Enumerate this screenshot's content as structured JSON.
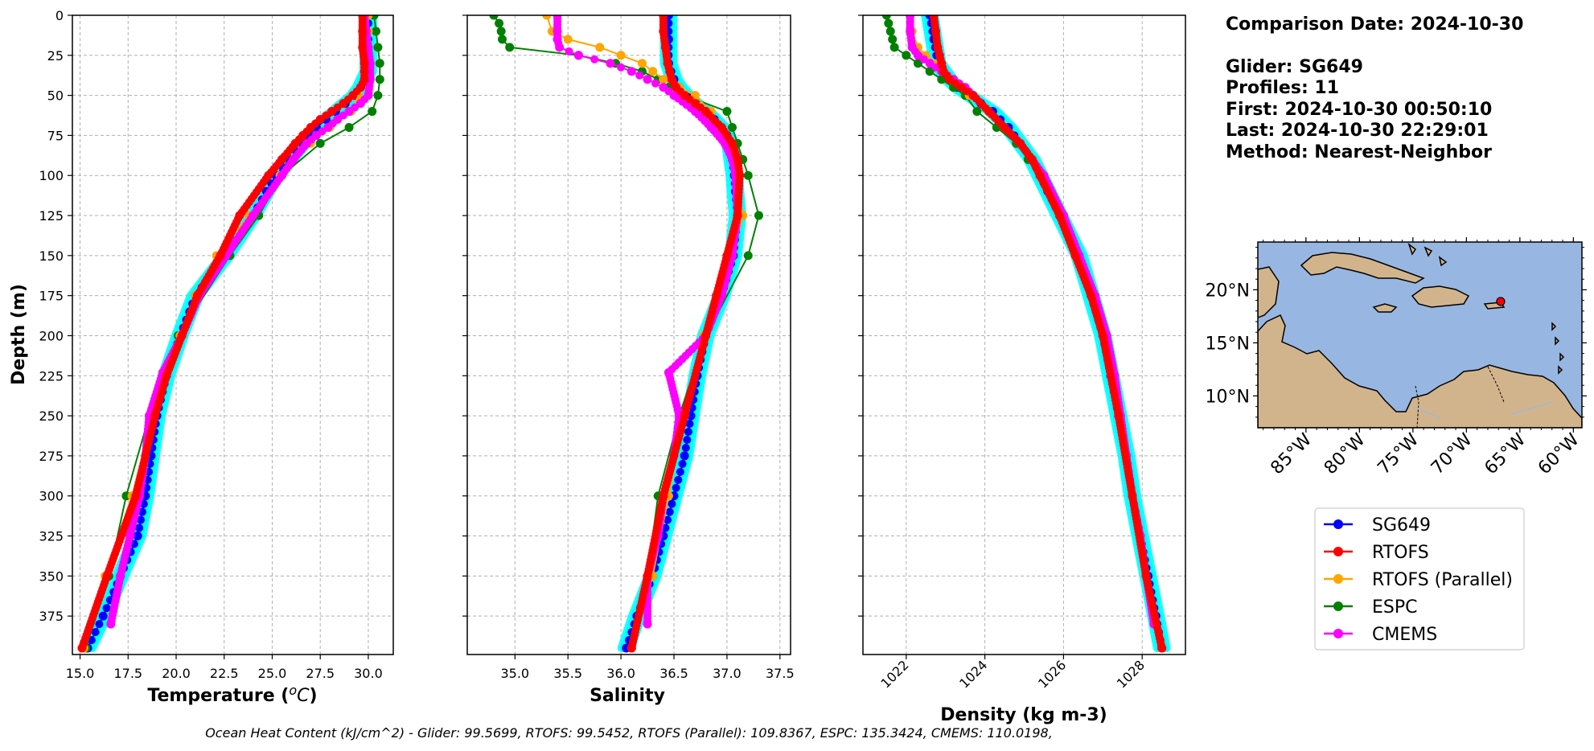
{
  "info": {
    "comparison": "Comparison Date: 2024-10-30",
    "glider": "Glider: SG649",
    "profiles": "Profiles: 11",
    "first": "First: 2024-10-30 00:50:10",
    "last": "Last: 2024-10-30 22:29:01",
    "method": "Method: Nearest-Neighbor"
  },
  "footer": "Ocean Heat Content (kJ/cm^2) - Glider: 99.5699,  RTOFS: 99.5452,  RTOFS (Parallel): 109.8367,  ESPC: 135.3424,  CMEMS: 110.0198,",
  "colors": {
    "SG649": "#0000ff",
    "RTOFS": "#ff0000",
    "RTOFS (Parallel)": "#ffa500",
    "ESPC": "#008000",
    "CMEMS": "#ff00ff",
    "glider_cloud": "#00ffff",
    "ocean": "#97b6e1",
    "land": "#d2b48c"
  },
  "legend": [
    "SG649",
    "RTOFS",
    "RTOFS (Parallel)",
    "ESPC",
    "CMEMS"
  ],
  "chart_data": [
    {
      "type": "line",
      "xlabel": "Temperature (°C)",
      "ylabel": "Depth (m)",
      "xlim": [
        14.6,
        31.3
      ],
      "ylim": [
        399,
        0
      ],
      "xticks": [
        15.0,
        17.5,
        20.0,
        22.5,
        25.0,
        27.5,
        30.0
      ],
      "xtick_labels": [
        "15.0",
        "17.5",
        "20.0",
        "22.5",
        "25.0",
        "27.5",
        "30.0"
      ],
      "yticks": [
        0,
        25,
        50,
        75,
        100,
        125,
        150,
        175,
        200,
        225,
        250,
        275,
        300,
        325,
        350,
        375
      ],
      "grid": true,
      "series": [
        {
          "name": "SG649",
          "marker_every": 5,
          "depth": [
            0,
            20,
            35,
            40,
            45,
            50,
            55,
            60,
            65,
            70,
            75,
            80,
            90,
            100,
            110,
            125,
            150,
            175,
            200,
            225,
            250,
            275,
            300,
            325,
            350,
            375,
            395
          ],
          "values": [
            30.0,
            30.0,
            30.0,
            29.8,
            29.6,
            29.3,
            28.8,
            28.3,
            27.8,
            27.3,
            26.9,
            26.6,
            25.9,
            25.2,
            24.7,
            24.0,
            22.6,
            21.0,
            20.2,
            19.5,
            19.0,
            18.7,
            18.4,
            18.0,
            17.1,
            16.2,
            15.4
          ]
        },
        {
          "name": "RTOFS",
          "marker_every": 2,
          "depth": [
            0,
            10,
            20,
            30,
            35,
            40,
            45,
            50,
            55,
            60,
            65,
            70,
            75,
            80,
            90,
            100,
            125,
            150,
            175,
            200,
            225,
            250,
            300,
            350,
            395
          ],
          "values": [
            29.7,
            29.7,
            29.7,
            29.8,
            29.8,
            29.8,
            29.6,
            29.2,
            28.7,
            28.1,
            27.5,
            27.0,
            26.6,
            26.2,
            25.5,
            24.8,
            23.3,
            22.3,
            21.1,
            20.3,
            19.5,
            18.9,
            17.9,
            16.4,
            15.1
          ]
        },
        {
          "name": "RTOFS (Parallel)",
          "depth": [
            0,
            10,
            20,
            30,
            40,
            50,
            60,
            70,
            80,
            90,
            100,
            125,
            150,
            175,
            200,
            225,
            250,
            300,
            350,
            395
          ],
          "values": [
            30.0,
            30.0,
            30.0,
            30.0,
            29.8,
            29.5,
            29.1,
            28.0,
            27.0,
            26.1,
            25.4,
            23.8,
            22.1,
            21.0,
            20.2,
            19.3,
            18.8,
            17.7,
            16.3,
            15.2
          ]
        },
        {
          "name": "ESPC",
          "depth": [
            0,
            10,
            20,
            30,
            40,
            50,
            60,
            70,
            80,
            100,
            125,
            150,
            200,
            250,
            300,
            350,
            395
          ],
          "values": [
            30.3,
            30.4,
            30.5,
            30.6,
            30.6,
            30.5,
            30.2,
            29.0,
            27.5,
            25.5,
            24.3,
            22.8,
            20.1,
            18.6,
            17.4,
            16.5,
            15.3
          ]
        },
        {
          "name": "CMEMS",
          "marker_every": 2,
          "depth": [
            0,
            10,
            20,
            30,
            40,
            50,
            55,
            60,
            65,
            70,
            75,
            80,
            90,
            100,
            125,
            150,
            175,
            200,
            223,
            250,
            275,
            300,
            325,
            350,
            380
          ],
          "values": [
            29.8,
            29.9,
            30.0,
            30.1,
            30.1,
            30.0,
            29.6,
            29.0,
            28.4,
            27.9,
            27.3,
            26.8,
            26.1,
            25.5,
            24.0,
            22.6,
            21.2,
            20.3,
            19.3,
            18.6,
            18.4,
            18.1,
            17.6,
            17.1,
            16.6
          ]
        }
      ]
    },
    {
      "type": "line",
      "xlabel": "Salinity",
      "xlim": [
        34.55,
        37.6
      ],
      "ylim": [
        399,
        0
      ],
      "xticks": [
        35.0,
        35.5,
        36.0,
        36.5,
        37.0,
        37.5
      ],
      "xtick_labels": [
        "35.0",
        "35.5",
        "36.0",
        "36.5",
        "37.0",
        "37.5"
      ],
      "grid": true,
      "series": [
        {
          "name": "SG649",
          "marker_every": 5,
          "depth": [
            0,
            15,
            30,
            40,
            45,
            50,
            55,
            60,
            65,
            70,
            75,
            80,
            90,
            100,
            110,
            125,
            150,
            175,
            200,
            225,
            250,
            275,
            300,
            325,
            350,
            375,
            395
          ],
          "values": [
            36.45,
            36.45,
            36.45,
            36.5,
            36.55,
            36.62,
            36.7,
            36.8,
            36.88,
            36.95,
            37.0,
            37.03,
            37.05,
            37.07,
            37.08,
            37.1,
            37.06,
            36.95,
            36.8,
            36.72,
            36.66,
            36.6,
            36.5,
            36.4,
            36.3,
            36.15,
            36.05
          ]
        },
        {
          "name": "RTOFS",
          "marker_every": 2,
          "depth": [
            0,
            10,
            20,
            30,
            35,
            40,
            45,
            50,
            55,
            60,
            70,
            80,
            90,
            100,
            125,
            150,
            175,
            200,
            250,
            300,
            350,
            395
          ],
          "values": [
            36.4,
            36.4,
            36.42,
            36.44,
            36.46,
            36.48,
            36.52,
            36.6,
            36.7,
            36.8,
            36.95,
            37.05,
            37.1,
            37.12,
            37.1,
            37.0,
            36.9,
            36.8,
            36.6,
            36.4,
            36.25,
            36.1
          ]
        },
        {
          "name": "RTOFS (Parallel)",
          "depth": [
            0,
            10,
            15,
            20,
            25,
            30,
            35,
            40,
            45,
            50,
            60,
            70,
            80,
            90,
            100,
            125,
            150,
            175,
            200,
            250,
            300,
            350,
            395
          ],
          "values": [
            35.3,
            35.35,
            35.5,
            35.8,
            36.0,
            36.2,
            36.3,
            36.4,
            36.55,
            36.7,
            36.85,
            36.95,
            37.05,
            37.08,
            37.1,
            37.15,
            37.05,
            36.9,
            36.78,
            36.6,
            36.45,
            36.3,
            36.1
          ]
        },
        {
          "name": "ESPC",
          "depth": [
            0,
            5,
            10,
            15,
            20,
            25,
            30,
            35,
            40,
            45,
            50,
            60,
            70,
            80,
            90,
            100,
            125,
            150,
            200,
            250,
            300,
            350,
            395
          ],
          "values": [
            34.8,
            34.85,
            34.87,
            34.88,
            34.95,
            35.6,
            35.95,
            36.2,
            36.35,
            36.45,
            36.6,
            37.0,
            37.05,
            37.1,
            37.15,
            37.2,
            37.3,
            37.2,
            36.8,
            36.55,
            36.35,
            36.25,
            36.1
          ]
        },
        {
          "name": "CMEMS",
          "marker_every": 2,
          "depth": [
            0,
            10,
            15,
            20,
            25,
            30,
            35,
            40,
            45,
            50,
            60,
            70,
            80,
            90,
            100,
            125,
            150,
            175,
            200,
            223,
            250,
            275,
            300,
            325,
            350,
            380
          ],
          "values": [
            35.4,
            35.4,
            35.4,
            35.42,
            35.6,
            35.9,
            36.1,
            36.25,
            36.4,
            36.5,
            36.7,
            36.85,
            36.98,
            37.05,
            37.08,
            37.1,
            37.05,
            36.95,
            36.8,
            36.45,
            36.55,
            36.5,
            36.4,
            36.35,
            36.25,
            36.25
          ]
        }
      ]
    },
    {
      "type": "line",
      "xlabel": "Density (kg m-3)",
      "xlim": [
        1020.9,
        1029.1
      ],
      "ylim": [
        399,
        0
      ],
      "xticks": [
        1022,
        1024,
        1026,
        1028
      ],
      "xtick_labels": [
        "1022",
        "1024",
        "1026",
        "1028"
      ],
      "grid": true,
      "series": [
        {
          "name": "SG649",
          "marker_every": 5,
          "depth": [
            0,
            15,
            30,
            40,
            45,
            50,
            55,
            60,
            70,
            80,
            90,
            100,
            110,
            125,
            150,
            175,
            200,
            225,
            250,
            275,
            300,
            325,
            350,
            375,
            395
          ],
          "values": [
            1022.6,
            1022.7,
            1022.8,
            1023.1,
            1023.3,
            1023.6,
            1023.9,
            1024.2,
            1024.6,
            1024.9,
            1025.2,
            1025.4,
            1025.6,
            1025.9,
            1026.4,
            1026.7,
            1027.0,
            1027.2,
            1027.4,
            1027.6,
            1027.75,
            1027.95,
            1028.15,
            1028.35,
            1028.5
          ]
        },
        {
          "name": "RTOFS",
          "marker_every": 2,
          "depth": [
            0,
            10,
            20,
            25,
            30,
            35,
            40,
            45,
            50,
            60,
            70,
            80,
            90,
            100,
            125,
            150,
            175,
            200,
            250,
            300,
            350,
            395
          ],
          "values": [
            1022.7,
            1022.75,
            1022.8,
            1022.85,
            1022.9,
            1022.95,
            1023.1,
            1023.4,
            1023.7,
            1024.1,
            1024.5,
            1024.9,
            1025.2,
            1025.4,
            1025.9,
            1026.3,
            1026.7,
            1027.0,
            1027.4,
            1027.75,
            1028.1,
            1028.5
          ]
        },
        {
          "name": "RTOFS (Parallel)",
          "depth": [
            0,
            10,
            20,
            25,
            30,
            40,
            50,
            60,
            70,
            80,
            90,
            100,
            125,
            150,
            200,
            250,
            300,
            350,
            395
          ],
          "values": [
            1022.1,
            1022.15,
            1022.3,
            1022.5,
            1022.8,
            1023.2,
            1023.6,
            1024.1,
            1024.5,
            1024.9,
            1025.2,
            1025.4,
            1025.9,
            1026.4,
            1027.0,
            1027.4,
            1027.75,
            1028.1,
            1028.5
          ]
        },
        {
          "name": "ESPC",
          "depth": [
            0,
            5,
            10,
            15,
            20,
            25,
            30,
            35,
            40,
            45,
            50,
            60,
            70,
            80,
            90,
            100,
            125,
            150,
            200,
            250,
            300,
            350,
            395
          ],
          "values": [
            1021.5,
            1021.55,
            1021.6,
            1021.65,
            1021.7,
            1022.0,
            1022.3,
            1022.6,
            1022.9,
            1023.2,
            1023.5,
            1023.8,
            1024.3,
            1024.8,
            1025.1,
            1025.4,
            1025.9,
            1026.4,
            1027.0,
            1027.4,
            1027.75,
            1028.1,
            1028.5
          ]
        },
        {
          "name": "CMEMS",
          "marker_every": 2,
          "depth": [
            0,
            10,
            20,
            25,
            30,
            35,
            40,
            45,
            50,
            60,
            70,
            80,
            90,
            100,
            125,
            150,
            175,
            200,
            225,
            250,
            275,
            300,
            325,
            350,
            380
          ],
          "values": [
            1022.1,
            1022.1,
            1022.15,
            1022.3,
            1022.6,
            1022.9,
            1023.2,
            1023.5,
            1023.7,
            1024.1,
            1024.5,
            1024.9,
            1025.2,
            1025.5,
            1026.0,
            1026.4,
            1026.8,
            1027.1,
            1027.3,
            1027.45,
            1027.6,
            1027.75,
            1027.95,
            1028.1,
            1028.3
          ]
        }
      ]
    }
  ],
  "map": {
    "xticks": [
      -85,
      -80,
      -75,
      -70,
      -65,
      -60
    ],
    "xtick_labels": [
      "85°W",
      "80°W",
      "75°W",
      "70°W",
      "65°W",
      "60°W"
    ],
    "yticks": [
      10,
      15,
      20
    ],
    "ytick_labels": [
      "10°N",
      "15°N",
      "20°N"
    ],
    "lon_range": [
      -89.5,
      -59.2
    ],
    "lat_range": [
      7.0,
      24.5
    ],
    "glider_position": [
      -66.8,
      18.9
    ]
  }
}
